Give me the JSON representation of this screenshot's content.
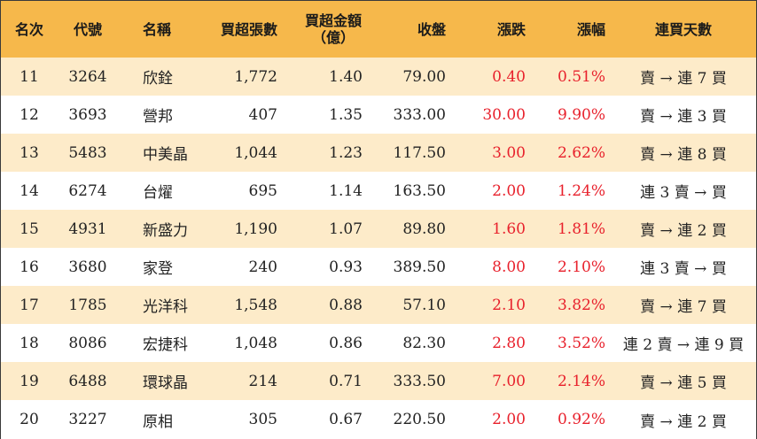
{
  "headers": {
    "rank": "名次",
    "code": "代號",
    "name": "名稱",
    "net_lots": "買超張數",
    "net_amount_line1": "買超金額",
    "net_amount_line2": "（億）",
    "close": "收盤",
    "change": "漲跌",
    "pct": "漲幅",
    "streak": "連買天數"
  },
  "rows": [
    {
      "rank": "11",
      "code": "3264",
      "name": "欣銓",
      "net_lots": "1,772",
      "net_amount": "1.40",
      "close": "79.00",
      "change": "0.40",
      "pct": "0.51%",
      "streak": "賣 → 連 7 買"
    },
    {
      "rank": "12",
      "code": "3693",
      "name": "營邦",
      "net_lots": "407",
      "net_amount": "1.35",
      "close": "333.00",
      "change": "30.00",
      "pct": "9.90%",
      "streak": "賣 → 連 3 買"
    },
    {
      "rank": "13",
      "code": "5483",
      "name": "中美晶",
      "net_lots": "1,044",
      "net_amount": "1.23",
      "close": "117.50",
      "change": "3.00",
      "pct": "2.62%",
      "streak": "賣 → 連 8 買"
    },
    {
      "rank": "14",
      "code": "6274",
      "name": "台燿",
      "net_lots": "695",
      "net_amount": "1.14",
      "close": "163.50",
      "change": "2.00",
      "pct": "1.24%",
      "streak": "連 3 賣 → 買"
    },
    {
      "rank": "15",
      "code": "4931",
      "name": "新盛力",
      "net_lots": "1,190",
      "net_amount": "1.07",
      "close": "89.80",
      "change": "1.60",
      "pct": "1.81%",
      "streak": "賣 → 連 2 買"
    },
    {
      "rank": "16",
      "code": "3680",
      "name": "家登",
      "net_lots": "240",
      "net_amount": "0.93",
      "close": "389.50",
      "change": "8.00",
      "pct": "2.10%",
      "streak": "連 3 賣 → 買"
    },
    {
      "rank": "17",
      "code": "1785",
      "name": "光洋科",
      "net_lots": "1,548",
      "net_amount": "0.88",
      "close": "57.10",
      "change": "2.10",
      "pct": "3.82%",
      "streak": "賣 → 連 7 買"
    },
    {
      "rank": "18",
      "code": "8086",
      "name": "宏捷科",
      "net_lots": "1,048",
      "net_amount": "0.86",
      "close": "82.30",
      "change": "2.80",
      "pct": "3.52%",
      "streak": "連 2 賣 → 連 9 買"
    },
    {
      "rank": "19",
      "code": "6488",
      "name": "環球晶",
      "net_lots": "214",
      "net_amount": "0.71",
      "close": "333.50",
      "change": "7.00",
      "pct": "2.14%",
      "streak": "賣 → 連 5 買"
    },
    {
      "rank": "20",
      "code": "3227",
      "name": "原相",
      "net_lots": "305",
      "net_amount": "0.67",
      "close": "220.50",
      "change": "2.00",
      "pct": "0.92%",
      "streak": "賣 → 連 2 買"
    }
  ],
  "colors": {
    "header_bg": "#f6b84b",
    "row_alt_bg": "#fdebc9",
    "gain_red": "#e8212c"
  }
}
